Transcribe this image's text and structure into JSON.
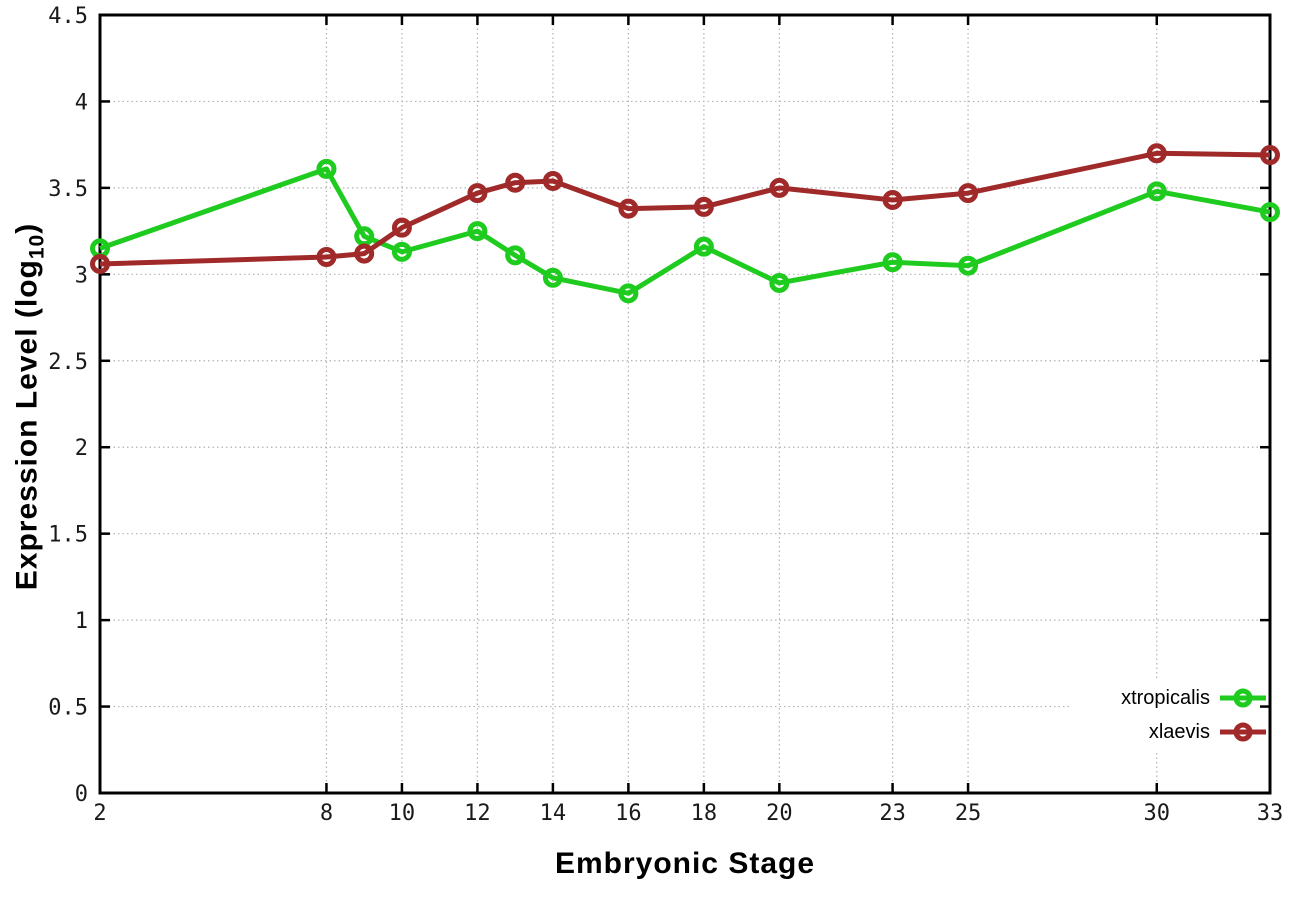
{
  "chart_data": {
    "type": "line",
    "title": "",
    "xlabel": "Embryonic Stage",
    "ylabel": "Expression Level (log10)",
    "ylabel_parts": {
      "pre": "Expression Level (log",
      "sub": "10",
      "post": ")"
    },
    "xlim": [
      2,
      33
    ],
    "ylim": [
      0,
      4.5
    ],
    "grid": true,
    "legend_position": "inside-bottom-right",
    "xticks": [
      2,
      8,
      10,
      12,
      14,
      16,
      18,
      20,
      23,
      25,
      30,
      33
    ],
    "yticks": [
      "0",
      "0.5",
      "1",
      "1.5",
      "2",
      "2.5",
      "3",
      "3.5",
      "4",
      "4.5"
    ],
    "x": [
      2,
      8,
      9,
      10,
      12,
      13,
      14,
      16,
      18,
      20,
      23,
      25,
      30,
      33
    ],
    "series": [
      {
        "name": "xtropicalis",
        "color": "#1ecb1e",
        "values": [
          3.15,
          3.61,
          3.22,
          3.13,
          3.25,
          3.11,
          2.98,
          2.89,
          3.16,
          2.95,
          3.07,
          3.05,
          3.48,
          3.36
        ]
      },
      {
        "name": "xlaevis",
        "color": "#a02a2a",
        "values": [
          3.06,
          3.1,
          3.12,
          3.27,
          3.47,
          3.53,
          3.54,
          3.38,
          3.39,
          3.5,
          3.43,
          3.47,
          3.7,
          3.69
        ]
      }
    ]
  }
}
